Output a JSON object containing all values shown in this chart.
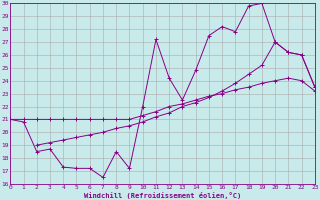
{
  "xlabel": "Windchill (Refroidissement éolien,°C)",
  "background_color": "#c8eaea",
  "grid_color": "#aaaaaa",
  "line_color": "#880088",
  "xlim": [
    0,
    23
  ],
  "ylim": [
    16,
    30
  ],
  "xticks": [
    0,
    1,
    2,
    3,
    4,
    5,
    6,
    7,
    8,
    9,
    10,
    11,
    12,
    13,
    14,
    15,
    16,
    17,
    18,
    19,
    20,
    21,
    22,
    23
  ],
  "yticks": [
    16,
    17,
    18,
    19,
    20,
    21,
    22,
    23,
    24,
    25,
    26,
    27,
    28,
    29,
    30
  ],
  "series": [
    {
      "x": [
        0,
        1,
        2,
        3,
        4,
        5,
        6,
        7,
        8,
        9,
        10,
        11,
        12,
        13,
        14,
        15,
        16,
        17,
        18,
        19,
        20,
        21,
        22,
        23
      ],
      "y": [
        21.0,
        21.0,
        21.0,
        21.0,
        21.0,
        21.0,
        21.0,
        21.0,
        21.0,
        21.0,
        21.3,
        21.6,
        22.0,
        22.2,
        22.5,
        22.8,
        23.0,
        23.3,
        23.5,
        23.8,
        24.0,
        24.2,
        24.0,
        23.2
      ]
    },
    {
      "x": [
        0,
        1,
        2,
        3,
        4,
        5,
        6,
        7,
        8,
        9,
        10,
        11,
        12,
        13,
        14,
        15,
        16,
        17,
        18,
        19,
        20,
        21,
        22,
        23
      ],
      "y": [
        21.0,
        20.8,
        18.5,
        18.7,
        17.3,
        17.2,
        17.2,
        16.5,
        18.5,
        17.2,
        22.0,
        27.2,
        24.2,
        22.5,
        24.8,
        27.5,
        28.2,
        27.8,
        29.8,
        30.0,
        27.0,
        26.2,
        26.0,
        23.5
      ]
    },
    {
      "x": [
        2,
        3,
        4,
        5,
        6,
        7,
        8,
        9,
        10,
        11,
        12,
        13,
        14,
        15,
        16,
        17,
        18,
        19,
        20,
        21,
        22,
        23
      ],
      "y": [
        19.0,
        19.2,
        19.4,
        19.6,
        19.8,
        20.0,
        20.3,
        20.5,
        20.8,
        21.2,
        21.5,
        22.0,
        22.3,
        22.7,
        23.2,
        23.8,
        24.5,
        25.2,
        27.0,
        26.2,
        26.0,
        23.5
      ]
    }
  ]
}
